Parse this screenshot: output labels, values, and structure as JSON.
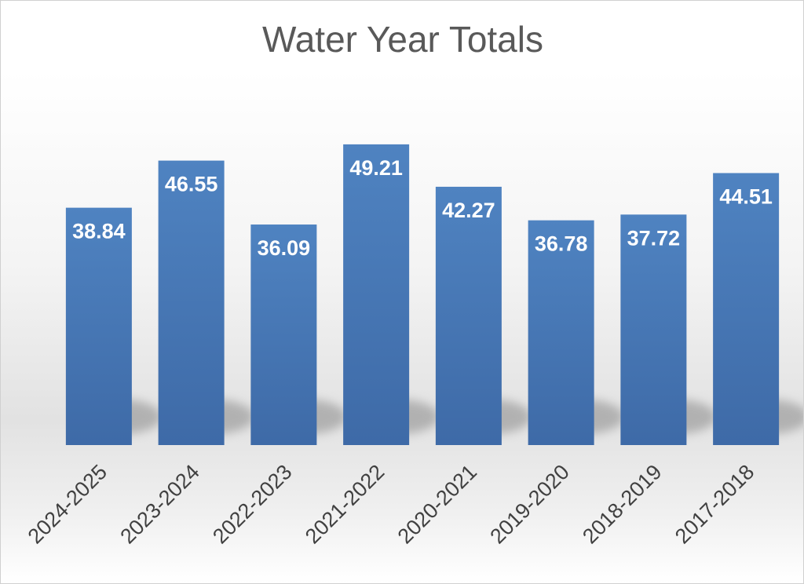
{
  "chart_data": {
    "type": "bar",
    "title": "Water Year Totals",
    "categories": [
      "2024-2025",
      "2023-2024",
      "2022-2023",
      "2021-2022",
      "2020-2021",
      "2019-2020",
      "2018-2019",
      "2017-2018"
    ],
    "values": [
      38.84,
      46.55,
      36.09,
      49.21,
      42.27,
      36.78,
      37.72,
      44.51
    ],
    "data_labels": [
      "38.84",
      "46.55",
      "36.09",
      "49.21",
      "42.27",
      "36.78",
      "37.72",
      "44.51"
    ],
    "ylim": [
      0,
      55
    ],
    "grid": false,
    "legend": "none",
    "colors": {
      "bar": "#4a7ebb",
      "bar_dark": "#3d6aa6",
      "label": "#ffffff",
      "title": "#595959",
      "tick": "#404040"
    }
  }
}
